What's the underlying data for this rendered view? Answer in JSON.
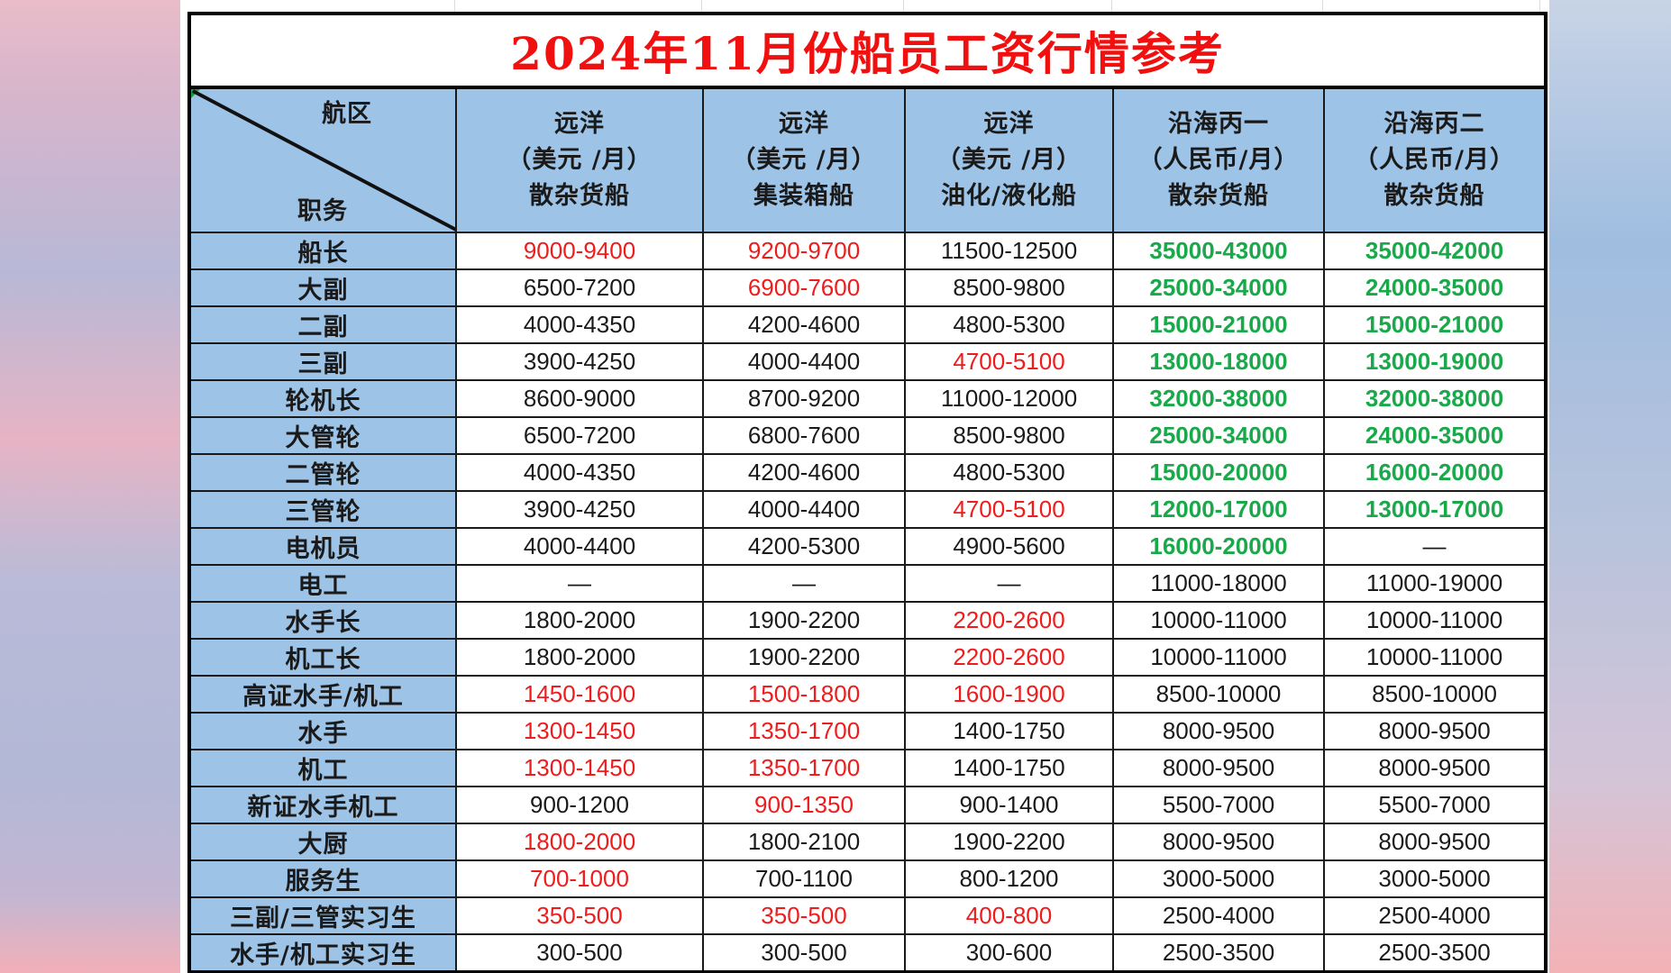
{
  "title": "2024年11月份船员工资行情参考",
  "header": {
    "corner_top": "航区",
    "corner_bottom": "职务",
    "columns": [
      {
        "line1": "远洋",
        "line2": "（美元 /月）",
        "line3": "散杂货船"
      },
      {
        "line1": "远洋",
        "line2": "（美元 /月）",
        "line3": "集装箱船"
      },
      {
        "line1": "远洋",
        "line2": "（美元 /月）",
        "line3": "油化/液化船"
      },
      {
        "line1": "沿海丙一",
        "line2": "（人民币/月）",
        "line3": "散杂货船"
      },
      {
        "line1": "沿海丙二",
        "line2": "（人民币/月）",
        "line3": "散杂货船"
      }
    ]
  },
  "colors": {
    "title_red": "#f01010",
    "header_blue": "#9dc3e6",
    "highlight_red": "#ee1c1c",
    "highlight_green": "#19a84a",
    "text_black": "#1a1a1a"
  },
  "rows": [
    {
      "position": "船长",
      "cells": [
        {
          "v": "9000-9400",
          "c": "red"
        },
        {
          "v": "9200-9700",
          "c": "red"
        },
        {
          "v": "11500-12500",
          "c": "black"
        },
        {
          "v": "35000-43000",
          "c": "green"
        },
        {
          "v": "35000-42000",
          "c": "green"
        }
      ]
    },
    {
      "position": "大副",
      "cells": [
        {
          "v": "6500-7200",
          "c": "black"
        },
        {
          "v": "6900-7600",
          "c": "red"
        },
        {
          "v": "8500-9800",
          "c": "black"
        },
        {
          "v": "25000-34000",
          "c": "green"
        },
        {
          "v": "24000-35000",
          "c": "green"
        }
      ]
    },
    {
      "position": "二副",
      "cells": [
        {
          "v": "4000-4350",
          "c": "black"
        },
        {
          "v": "4200-4600",
          "c": "black"
        },
        {
          "v": "4800-5300",
          "c": "black"
        },
        {
          "v": "15000-21000",
          "c": "green"
        },
        {
          "v": "15000-21000",
          "c": "green"
        }
      ]
    },
    {
      "position": "三副",
      "cells": [
        {
          "v": "3900-4250",
          "c": "black"
        },
        {
          "v": "4000-4400",
          "c": "black"
        },
        {
          "v": "4700-5100",
          "c": "red"
        },
        {
          "v": "13000-18000",
          "c": "green"
        },
        {
          "v": "13000-19000",
          "c": "green"
        }
      ]
    },
    {
      "position": "轮机长",
      "cells": [
        {
          "v": "8600-9000",
          "c": "black"
        },
        {
          "v": "8700-9200",
          "c": "black"
        },
        {
          "v": "11000-12000",
          "c": "black"
        },
        {
          "v": "32000-38000",
          "c": "green"
        },
        {
          "v": "32000-38000",
          "c": "green"
        }
      ]
    },
    {
      "position": "大管轮",
      "cells": [
        {
          "v": "6500-7200",
          "c": "black"
        },
        {
          "v": "6800-7600",
          "c": "black"
        },
        {
          "v": "8500-9800",
          "c": "black"
        },
        {
          "v": "25000-34000",
          "c": "green"
        },
        {
          "v": "24000-35000",
          "c": "green"
        }
      ]
    },
    {
      "position": "二管轮",
      "cells": [
        {
          "v": "4000-4350",
          "c": "black"
        },
        {
          "v": "4200-4600",
          "c": "black"
        },
        {
          "v": "4800-5300",
          "c": "black"
        },
        {
          "v": "15000-20000",
          "c": "green"
        },
        {
          "v": "16000-20000",
          "c": "green"
        }
      ]
    },
    {
      "position": "三管轮",
      "cells": [
        {
          "v": "3900-4250",
          "c": "black"
        },
        {
          "v": "4000-4400",
          "c": "black"
        },
        {
          "v": "4700-5100",
          "c": "red"
        },
        {
          "v": "12000-17000",
          "c": "green"
        },
        {
          "v": "13000-17000",
          "c": "green"
        }
      ]
    },
    {
      "position": "电机员",
      "cells": [
        {
          "v": "4000-4400",
          "c": "black"
        },
        {
          "v": "4200-5300",
          "c": "black"
        },
        {
          "v": "4900-5600",
          "c": "black"
        },
        {
          "v": "16000-20000",
          "c": "green"
        },
        {
          "v": "—",
          "c": "black"
        }
      ]
    },
    {
      "position": "电工",
      "cells": [
        {
          "v": "—",
          "c": "black"
        },
        {
          "v": "—",
          "c": "black"
        },
        {
          "v": "—",
          "c": "black"
        },
        {
          "v": "11000-18000",
          "c": "black"
        },
        {
          "v": "11000-19000",
          "c": "black"
        }
      ]
    },
    {
      "position": "水手长",
      "cells": [
        {
          "v": "1800-2000",
          "c": "black"
        },
        {
          "v": "1900-2200",
          "c": "black"
        },
        {
          "v": "2200-2600",
          "c": "red"
        },
        {
          "v": "10000-11000",
          "c": "black"
        },
        {
          "v": "10000-11000",
          "c": "black"
        }
      ]
    },
    {
      "position": "机工长",
      "cells": [
        {
          "v": "1800-2000",
          "c": "black"
        },
        {
          "v": "1900-2200",
          "c": "black"
        },
        {
          "v": "2200-2600",
          "c": "red"
        },
        {
          "v": "10000-11000",
          "c": "black"
        },
        {
          "v": "10000-11000",
          "c": "black"
        }
      ]
    },
    {
      "position": "高证水手/机工",
      "cells": [
        {
          "v": "1450-1600",
          "c": "red"
        },
        {
          "v": "1500-1800",
          "c": "red"
        },
        {
          "v": "1600-1900",
          "c": "red"
        },
        {
          "v": "8500-10000",
          "c": "black"
        },
        {
          "v": "8500-10000",
          "c": "black"
        }
      ]
    },
    {
      "position": "水手",
      "cells": [
        {
          "v": "1300-1450",
          "c": "red"
        },
        {
          "v": "1350-1700",
          "c": "red"
        },
        {
          "v": "1400-1750",
          "c": "black"
        },
        {
          "v": "8000-9500",
          "c": "black"
        },
        {
          "v": "8000-9500",
          "c": "black"
        }
      ]
    },
    {
      "position": "机工",
      "cells": [
        {
          "v": "1300-1450",
          "c": "red"
        },
        {
          "v": "1350-1700",
          "c": "red"
        },
        {
          "v": "1400-1750",
          "c": "black"
        },
        {
          "v": "8000-9500",
          "c": "black"
        },
        {
          "v": "8000-9500",
          "c": "black"
        }
      ]
    },
    {
      "position": "新证水手机工",
      "cells": [
        {
          "v": "900-1200",
          "c": "black"
        },
        {
          "v": "900-1350",
          "c": "red"
        },
        {
          "v": "900-1400",
          "c": "black"
        },
        {
          "v": "5500-7000",
          "c": "black"
        },
        {
          "v": "5500-7000",
          "c": "black"
        }
      ]
    },
    {
      "position": "大厨",
      "cells": [
        {
          "v": "1800-2000",
          "c": "red"
        },
        {
          "v": "1800-2100",
          "c": "black"
        },
        {
          "v": "1900-2200",
          "c": "black"
        },
        {
          "v": "8000-9500",
          "c": "black"
        },
        {
          "v": "8000-9500",
          "c": "black"
        }
      ]
    },
    {
      "position": "服务生",
      "cells": [
        {
          "v": "700-1000",
          "c": "red"
        },
        {
          "v": "700-1100",
          "c": "black"
        },
        {
          "v": "800-1200",
          "c": "black"
        },
        {
          "v": "3000-5000",
          "c": "black"
        },
        {
          "v": "3000-5000",
          "c": "black"
        }
      ]
    },
    {
      "position": "三副/三管实习生",
      "cells": [
        {
          "v": "350-500",
          "c": "red"
        },
        {
          "v": "350-500",
          "c": "red"
        },
        {
          "v": "400-800",
          "c": "red"
        },
        {
          "v": "2500-4000",
          "c": "black"
        },
        {
          "v": "2500-4000",
          "c": "black"
        }
      ]
    },
    {
      "position": "水手/机工实习生",
      "cells": [
        {
          "v": "300-500",
          "c": "black"
        },
        {
          "v": "300-500",
          "c": "black"
        },
        {
          "v": "300-600",
          "c": "black"
        },
        {
          "v": "2500-3500",
          "c": "black"
        },
        {
          "v": "2500-3500",
          "c": "black"
        }
      ]
    }
  ]
}
